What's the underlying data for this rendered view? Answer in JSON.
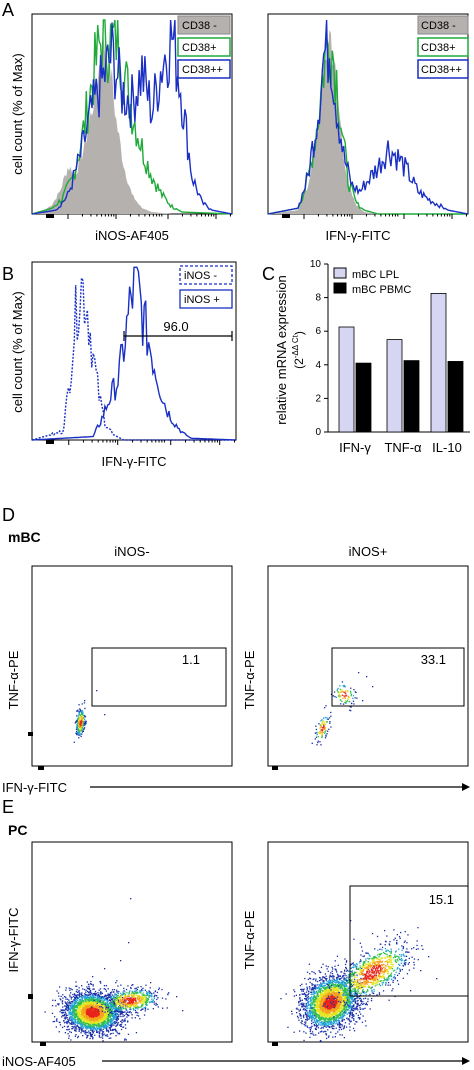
{
  "figure": {
    "panel_letters": [
      "A",
      "B",
      "C",
      "D",
      "E"
    ],
    "d_row_label": "mBC",
    "e_row_label": "PC"
  },
  "colors": {
    "gray_fill": "#b4b1af",
    "green": "#1faa3a",
    "blue": "#1a2fc4",
    "lpl_bar": "#d6d6f2",
    "pbmc_bar": "#000000",
    "gate": "#000000"
  },
  "chart_data": [
    {
      "id": "A1",
      "type": "area",
      "xlabel": "iNOS-AF405",
      "ylabel": "cell count (% of Max)",
      "legend": [
        "CD38 -",
        "CD38+",
        "CD38++"
      ],
      "legend_position": "top-right",
      "series": [
        {
          "name": "CD38 -",
          "style": "filled-gray",
          "x": [
            0,
            0.05,
            0.1,
            0.14,
            0.18,
            0.22,
            0.26,
            0.3,
            0.33,
            0.36,
            0.39,
            0.42,
            0.46,
            0.5,
            0.55,
            0.6,
            0.7,
            1.0
          ],
          "y": [
            0,
            0.01,
            0.05,
            0.12,
            0.25,
            0.22,
            0.35,
            0.55,
            0.75,
            0.9,
            0.8,
            0.5,
            0.25,
            0.1,
            0.03,
            0.01,
            0,
            0
          ]
        },
        {
          "name": "CD38+",
          "style": "green-line",
          "x": [
            0,
            0.1,
            0.15,
            0.2,
            0.25,
            0.3,
            0.35,
            0.4,
            0.43,
            0.46,
            0.5,
            0.55,
            0.6,
            0.65,
            0.7,
            0.75,
            1.0
          ],
          "y": [
            0,
            0.03,
            0.08,
            0.18,
            0.4,
            0.7,
            0.95,
            0.9,
            0.97,
            0.75,
            0.55,
            0.35,
            0.2,
            0.1,
            0.04,
            0.01,
            0
          ]
        },
        {
          "name": "CD38++",
          "style": "blue-line",
          "x": [
            0,
            0.12,
            0.18,
            0.24,
            0.3,
            0.35,
            0.4,
            0.45,
            0.5,
            0.55,
            0.6,
            0.65,
            0.7,
            0.74,
            0.77,
            0.8,
            0.85,
            0.9,
            1.0
          ],
          "y": [
            0,
            0.02,
            0.1,
            0.3,
            0.55,
            0.7,
            0.85,
            0.65,
            0.6,
            0.75,
            0.55,
            0.8,
            0.95,
            0.7,
            0.45,
            0.2,
            0.06,
            0.02,
            0
          ]
        }
      ]
    },
    {
      "id": "A2",
      "type": "area",
      "xlabel": "IFN-γ-FITC",
      "ylabel": "",
      "legend": [
        "CD38 -",
        "CD38+",
        "CD38++"
      ],
      "legend_position": "top-right",
      "series": [
        {
          "name": "CD38 -",
          "style": "filled-gray",
          "x": [
            0,
            0.15,
            0.2,
            0.25,
            0.28,
            0.31,
            0.34,
            0.37,
            0.4,
            0.44,
            0.48,
            0.55,
            1.0
          ],
          "y": [
            0,
            0.02,
            0.15,
            0.45,
            0.75,
            0.98,
            0.7,
            0.4,
            0.15,
            0.05,
            0.01,
            0,
            0
          ]
        },
        {
          "name": "CD38+",
          "style": "green-line",
          "x": [
            0,
            0.15,
            0.2,
            0.25,
            0.28,
            0.31,
            0.34,
            0.37,
            0.4,
            0.44,
            0.48,
            0.55,
            1.0
          ],
          "y": [
            0,
            0.03,
            0.18,
            0.5,
            0.8,
            0.95,
            0.75,
            0.45,
            0.18,
            0.06,
            0.02,
            0,
            0
          ]
        },
        {
          "name": "CD38++",
          "style": "blue-line",
          "x": [
            0,
            0.15,
            0.2,
            0.25,
            0.28,
            0.31,
            0.34,
            0.38,
            0.42,
            0.46,
            0.5,
            0.55,
            0.6,
            0.65,
            0.7,
            0.75,
            0.8,
            0.85,
            0.9,
            1.0
          ],
          "y": [
            0,
            0.03,
            0.2,
            0.55,
            0.85,
            0.9,
            0.6,
            0.3,
            0.15,
            0.12,
            0.18,
            0.25,
            0.35,
            0.3,
            0.22,
            0.12,
            0.08,
            0.05,
            0.02,
            0
          ]
        }
      ]
    },
    {
      "id": "B",
      "type": "line",
      "xlabel": "IFN-γ-FITC",
      "ylabel": "cell count (% of Max)",
      "legend": [
        "iNOS -",
        "iNOS +"
      ],
      "legend_position": "top-right",
      "gate_label": "96.0",
      "series": [
        {
          "name": "iNOS -",
          "style": "blue-dashed",
          "x": [
            0,
            0.15,
            0.18,
            0.21,
            0.24,
            0.27,
            0.3,
            0.33,
            0.36,
            0.4,
            0.45,
            1.0
          ],
          "y": [
            0,
            0.05,
            0.3,
            0.7,
            0.95,
            0.8,
            0.5,
            0.25,
            0.1,
            0.03,
            0,
            0
          ]
        },
        {
          "name": "iNOS +",
          "style": "blue-line",
          "x": [
            0,
            0.3,
            0.34,
            0.38,
            0.42,
            0.45,
            0.48,
            0.51,
            0.54,
            0.57,
            0.6,
            0.63,
            0.66,
            0.7,
            0.74,
            0.78,
            1.0
          ],
          "y": [
            0,
            0.02,
            0.12,
            0.25,
            0.35,
            0.55,
            0.8,
            0.98,
            0.75,
            0.6,
            0.45,
            0.3,
            0.18,
            0.1,
            0.04,
            0.01,
            0
          ]
        }
      ]
    },
    {
      "id": "C",
      "type": "bar",
      "ylabel": "relative mRNA expression",
      "ylabel_sub": "(2",
      "ylabel_sup": "-ΔΔ Ct",
      "ylabel_close": ")",
      "categories": [
        "IFN-γ",
        "TNF-α",
        "IL-10"
      ],
      "series": [
        {
          "name": "mBC LPL",
          "values": [
            6.25,
            5.5,
            8.25
          ]
        },
        {
          "name": "mBC PBMC",
          "values": [
            4.1,
            4.25,
            4.2
          ]
        }
      ],
      "ylim": [
        0,
        10
      ],
      "yticks": [
        "0",
        "2",
        "4",
        "6",
        "8",
        "10"
      ],
      "legend_position": "top-left"
    },
    {
      "id": "D1",
      "type": "scatter",
      "title": "iNOS-",
      "xlabel": "IFN-γ-FITC",
      "ylabel": "TNF-α-PE",
      "gate_label": "1.1"
    },
    {
      "id": "D2",
      "type": "scatter",
      "title": "iNOS+",
      "xlabel": "",
      "ylabel": "TNF-α-PE",
      "gate_label": "33.1"
    },
    {
      "id": "E1",
      "type": "scatter",
      "xlabel": "iNOS-AF405",
      "ylabel": "IFN-γ-FITC"
    },
    {
      "id": "E2",
      "type": "scatter",
      "xlabel": "",
      "ylabel": "TNF-α-PE",
      "gate_label": "15.1"
    }
  ]
}
